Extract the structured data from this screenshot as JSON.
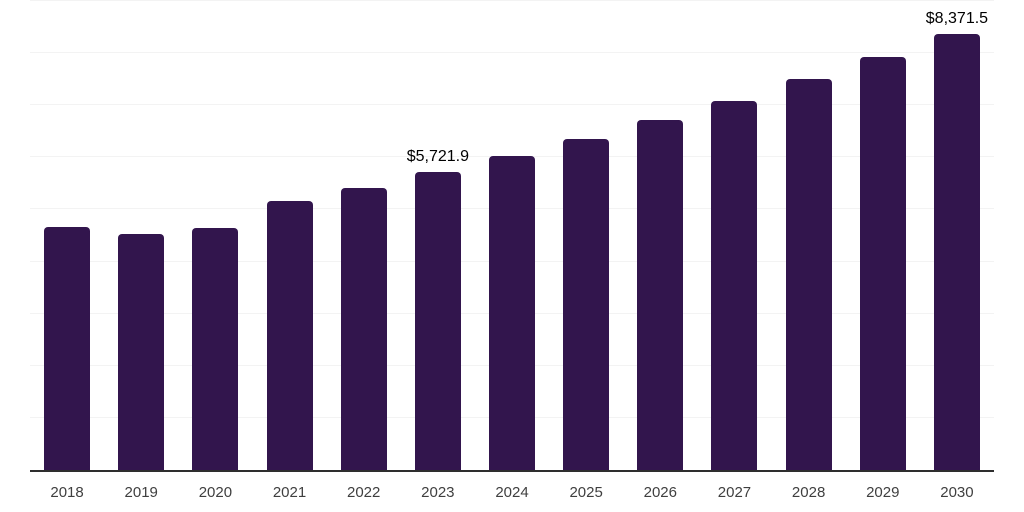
{
  "chart_data": {
    "type": "bar",
    "title": "",
    "xlabel": "",
    "ylabel": "",
    "categories": [
      "2018",
      "2019",
      "2020",
      "2021",
      "2022",
      "2023",
      "2024",
      "2025",
      "2026",
      "2027",
      "2028",
      "2029",
      "2030"
    ],
    "values": [
      4660,
      4530,
      4640,
      5170,
      5410,
      5721.9,
      6030,
      6350,
      6720,
      7080,
      7500,
      7920,
      8371.5
    ],
    "value_labels": {
      "2023": "$5,721.9",
      "2030": "$8,371.5"
    },
    "ylim": [
      0,
      9000
    ],
    "grid_interval": 1000,
    "grid": "horizontal",
    "legend": "none",
    "y_axis_tick_labels": "none",
    "colors": {
      "bar": "#32154d",
      "axis_line": "#2e2e2e",
      "gridline": "#f3f3f3",
      "value_label_text": "#000000",
      "x_tick_text": "#3f3f3f",
      "background": "#ffffff"
    }
  }
}
